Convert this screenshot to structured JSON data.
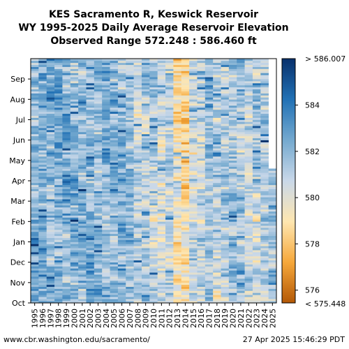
{
  "chart_data": {
    "type": "heatmap",
    "title_lines": [
      "KES Sacramento R, Keswick Reservoir",
      "WY 1995-2025 Daily Average Reservoir Elevation",
      "Observed Range 572.248 : 586.460 ft"
    ],
    "x_tick_labels": [
      "1995",
      "1996",
      "1997",
      "1998",
      "1999",
      "2000",
      "2001",
      "2002",
      "2003",
      "2004",
      "2005",
      "2006",
      "2007",
      "2008",
      "2009",
      "2010",
      "2011",
      "2012",
      "2013",
      "2014",
      "2015",
      "2016",
      "2017",
      "2018",
      "2019",
      "2020",
      "2021",
      "2022",
      "2023",
      "2024",
      "2025"
    ],
    "y_tick_labels": [
      "Oct",
      "Nov",
      "Dec",
      "Jan",
      "Feb",
      "Mar",
      "Apr",
      "May",
      "Jun",
      "Jul",
      "Aug",
      "Sep"
    ],
    "colorbar": {
      "min": 575.448,
      "max": 586.007,
      "top_label": "> 586.007",
      "bottom_label": "< 575.448",
      "tick_values": [
        576,
        578,
        580,
        582,
        584
      ],
      "tick_labels": [
        "576",
        "578",
        "580",
        "582",
        "584"
      ],
      "colors": [
        "#b35806",
        "#f6a83b",
        "#fee6b0",
        "#c9d8e9",
        "#74a9cf",
        "#2171b5",
        "#08306b"
      ]
    },
    "year_means": [
      582.0,
      582.3,
      582.0,
      582.3,
      582.2,
      582.0,
      581.8,
      581.8,
      582.0,
      582.0,
      582.1,
      582.1,
      581.8,
      581.0,
      581.2,
      581.2,
      580.4,
      580.8,
      579.6,
      578.9,
      580.6,
      580.7,
      581.5,
      581.1,
      581.3,
      581.6,
      581.5,
      580.8,
      581.2,
      581.3,
      581.6
    ],
    "last_year_fraction": 0.55
  },
  "footer": {
    "source": "www.cbr.washington.edu/sacramento/",
    "timestamp": "27 Apr 2025 15:46:29 PDT"
  }
}
